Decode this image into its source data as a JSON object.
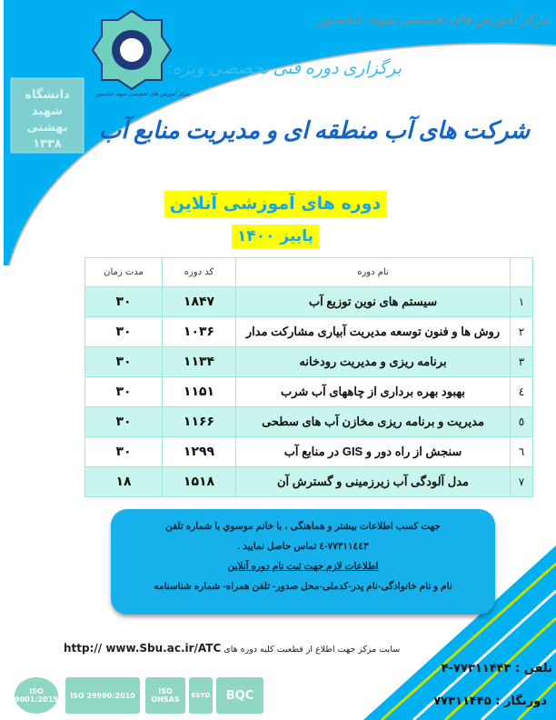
{
  "header": {
    "center_name": "مرکز آموزش های تخصصی شهید عباسپور",
    "holding": "برگزاری دوره فنی تخصصی ویژه:",
    "title": "شرکت های آب منطقه ای و مدیریت منابع آب",
    "logo_left_text": "دانشگاه شهید بهشتی ۱۳۳۸",
    "logo_top_caption": "مرکز آموزش های تخصصی شهید عباسپور"
  },
  "subtitle": {
    "line1": "دوره های آموزشی آنلاین",
    "line2": "پاییز ۱۴۰۰"
  },
  "table": {
    "headers": {
      "num": "",
      "name": "نام دوره",
      "code": "کد دوره",
      "duration": "مدت زمان"
    },
    "rows": [
      {
        "num": "۱",
        "name": "سیستم های نوین توزیع آب",
        "code": "۱۸۴۷",
        "duration": "۳۰"
      },
      {
        "num": "۲",
        "name": "روش ها و فنون توسعه مدیریت آبیاری مشارکت مدار",
        "code": "۱۰۳۶",
        "duration": "۳۰"
      },
      {
        "num": "۳",
        "name": "برنامه ریزی و مدیریت رودخانه",
        "code": "۱۱۳۴",
        "duration": "۳۰"
      },
      {
        "num": "٤",
        "name": "بهبود بهره برداری از چاههای آب شرب",
        "code": "۱۱۵۱",
        "duration": "۳۰"
      },
      {
        "num": "٥",
        "name": "مدیریت و برنامه ریزی مخازن آب های سطحی",
        "code": "۱۱۶۶",
        "duration": "۳۰"
      },
      {
        "num": "٦",
        "name": "سنجش از راه دور و  GIS در منابع آب",
        "code": "۱۲۹۹",
        "duration": "۳۰"
      },
      {
        "num": "۷",
        "name": "مدل آلودگی آب زیرزمینی و گسترش آن",
        "code": "۱۵۱۸",
        "duration": "۱۸"
      }
    ]
  },
  "info": {
    "line1": "جهت کسب اطلاعات بیشتر و هماهنگی ، با خانم موسوي  با شماره تلفن",
    "line2": "٧٧٣١١٤٤٣-٤ تماس حاصل نمایید .",
    "line3": "اطلاعات لازم جهت ثبت نام دوره آنلاین",
    "line4": "نام و نام خانوادگی-نام پدر-کدملی-محل صدور- تلفن همراه- شماره شناسنامه"
  },
  "footer": {
    "site_text": "سایت مرکز جهت اطلاع از قطعیت کلیه دوره های",
    "site_url": "http:// www.Sbu.ac.ir/ATC",
    "phone_label": "تلفن :",
    "phone": "۷۷۳۱۱۴۴۳-۴",
    "fax_label": "دورنگار :",
    "fax": "۷۷۳۱۱۴۴۵",
    "certs": [
      "ISO 9001:2015",
      "ISO 29990:2010",
      "ISO OHSAS",
      "ESYD",
      "BQC"
    ]
  },
  "colors": {
    "blue": "#00b0f0",
    "title_blue": "#1565c8",
    "teal_row": "#c8f6ee",
    "yellow": "#ffff00",
    "info_box": "#16b0ea"
  }
}
